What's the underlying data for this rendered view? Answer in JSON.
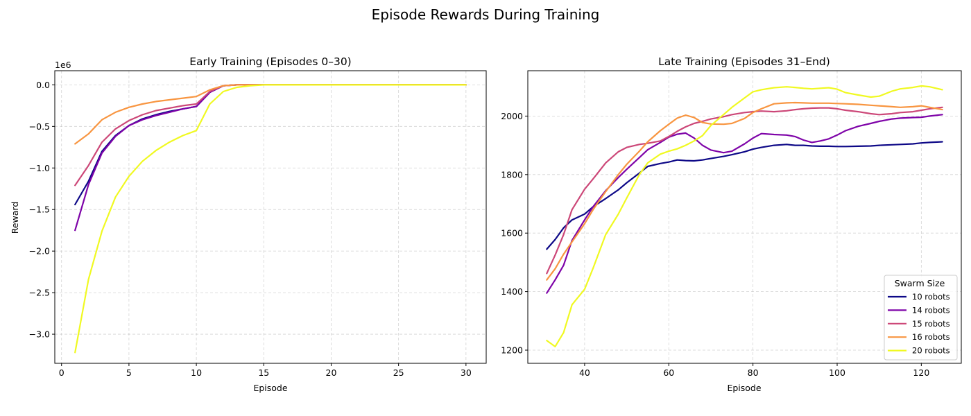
{
  "figure": {
    "title": "Episode Rewards During Training"
  },
  "chart_data": [
    {
      "type": "line",
      "title": "Early Training (Episodes 0–30)",
      "xlabel": "Episode",
      "ylabel": "Reward",
      "scale_note": "1e6",
      "xlim": [
        -0.5,
        31.5
      ],
      "ylim": [
        -3.35,
        0.17
      ],
      "xticks": [
        0,
        5,
        10,
        15,
        20,
        25,
        30
      ],
      "yticks": [
        0.0,
        -0.5,
        -1.0,
        -1.5,
        -2.0,
        -2.5,
        -3.0
      ],
      "ytick_labels": [
        "0.0",
        "−0.5",
        "−1.0",
        "−1.5",
        "−2.0",
        "−2.5",
        "−3.0"
      ],
      "y_units": "millions",
      "grid": true,
      "x": [
        1,
        2,
        3,
        4,
        5,
        6,
        7,
        8,
        9,
        10,
        11,
        12,
        13,
        14,
        15,
        20,
        25,
        30
      ],
      "series": [
        {
          "name": "10 robots",
          "color": "#0d0887",
          "values": [
            -1.44,
            -1.16,
            -0.8,
            -0.61,
            -0.49,
            -0.41,
            -0.36,
            -0.32,
            -0.29,
            -0.26,
            -0.09,
            -0.01,
            0.0,
            0.0,
            0.0,
            0.0,
            0.0,
            0.0
          ]
        },
        {
          "name": "14 robots",
          "color": "#7e03a8",
          "values": [
            -1.75,
            -1.2,
            -0.82,
            -0.62,
            -0.49,
            -0.42,
            -0.37,
            -0.33,
            -0.29,
            -0.26,
            -0.09,
            -0.01,
            0.0,
            0.0,
            0.0,
            0.0,
            0.0,
            0.0
          ]
        },
        {
          "name": "15 robots",
          "color": "#cc4778",
          "values": [
            -1.21,
            -0.97,
            -0.69,
            -0.53,
            -0.43,
            -0.36,
            -0.31,
            -0.28,
            -0.25,
            -0.23,
            -0.08,
            -0.01,
            0.0,
            0.0,
            0.0,
            0.0,
            0.0,
            0.0
          ]
        },
        {
          "name": "16 robots",
          "color": "#f89540",
          "values": [
            -0.71,
            -0.59,
            -0.42,
            -0.33,
            -0.27,
            -0.23,
            -0.2,
            -0.18,
            -0.16,
            -0.14,
            -0.06,
            -0.01,
            0.0,
            0.0,
            0.0,
            0.0,
            0.0,
            0.0
          ]
        },
        {
          "name": "20 robots",
          "color": "#f0f921",
          "values": [
            -3.22,
            -2.34,
            -1.76,
            -1.35,
            -1.1,
            -0.92,
            -0.79,
            -0.69,
            -0.61,
            -0.55,
            -0.23,
            -0.08,
            -0.03,
            -0.01,
            0.0,
            0.0,
            0.0,
            0.0
          ]
        }
      ]
    },
    {
      "type": "line",
      "title": "Late Training (Episodes 31–End)",
      "xlabel": "Episode",
      "ylabel": "",
      "xlim": [
        26.5,
        129.5
      ],
      "ylim": [
        1155,
        2155
      ],
      "xticks": [
        40,
        60,
        80,
        100,
        120
      ],
      "yticks": [
        1200,
        1400,
        1600,
        1800,
        2000
      ],
      "grid": true,
      "legend": {
        "title": "Swarm Size",
        "placement": "lower-right"
      },
      "x": [
        31,
        33,
        35,
        37,
        40,
        42,
        45,
        48,
        50,
        53,
        55,
        58,
        60,
        62,
        64,
        66,
        68,
        70,
        73,
        75,
        78,
        80,
        82,
        85,
        88,
        90,
        92,
        94,
        96,
        98,
        100,
        102,
        105,
        108,
        110,
        113,
        115,
        118,
        120,
        122,
        125
      ],
      "series": [
        {
          "name": "10 robots",
          "color": "#0d0887",
          "values": [
            1545,
            1578,
            1618,
            1645,
            1665,
            1690,
            1718,
            1748,
            1772,
            1805,
            1828,
            1838,
            1843,
            1850,
            1848,
            1847,
            1850,
            1855,
            1862,
            1868,
            1878,
            1887,
            1893,
            1900,
            1903,
            1900,
            1900,
            1898,
            1897,
            1897,
            1896,
            1896,
            1897,
            1898,
            1900,
            1902,
            1903,
            1905,
            1908,
            1910,
            1912
          ]
        },
        {
          "name": "14 robots",
          "color": "#7e03a8",
          "values": [
            1395,
            1440,
            1490,
            1575,
            1645,
            1690,
            1745,
            1790,
            1818,
            1858,
            1885,
            1910,
            1928,
            1938,
            1942,
            1925,
            1900,
            1884,
            1875,
            1880,
            1905,
            1925,
            1940,
            1937,
            1935,
            1930,
            1918,
            1910,
            1915,
            1922,
            1935,
            1950,
            1965,
            1975,
            1982,
            1990,
            1993,
            1995,
            1996,
            2000,
            2005
          ]
        },
        {
          "name": "15 robots",
          "color": "#cc4778",
          "values": [
            1462,
            1525,
            1595,
            1680,
            1750,
            1785,
            1840,
            1878,
            1893,
            1903,
            1907,
            1915,
            1930,
            1948,
            1963,
            1975,
            1982,
            1990,
            1998,
            2005,
            2012,
            2015,
            2017,
            2015,
            2018,
            2022,
            2025,
            2027,
            2028,
            2028,
            2025,
            2020,
            2015,
            2008,
            2005,
            2008,
            2012,
            2015,
            2020,
            2025,
            2030
          ]
        },
        {
          "name": "16 robots",
          "color": "#f89540",
          "values": [
            1440,
            1478,
            1528,
            1570,
            1632,
            1680,
            1742,
            1800,
            1835,
            1880,
            1912,
            1950,
            1972,
            1993,
            2003,
            1995,
            1978,
            1973,
            1972,
            1975,
            1992,
            2012,
            2025,
            2042,
            2045,
            2046,
            2045,
            2044,
            2044,
            2044,
            2043,
            2042,
            2040,
            2037,
            2035,
            2032,
            2030,
            2032,
            2035,
            2030,
            2022
          ]
        },
        {
          "name": "20 robots",
          "color": "#f0f921",
          "values": [
            1233,
            1212,
            1260,
            1355,
            1408,
            1480,
            1595,
            1665,
            1720,
            1800,
            1840,
            1870,
            1880,
            1888,
            1900,
            1915,
            1933,
            1968,
            2005,
            2030,
            2062,
            2083,
            2090,
            2097,
            2100,
            2098,
            2095,
            2093,
            2095,
            2097,
            2092,
            2080,
            2072,
            2065,
            2068,
            2085,
            2093,
            2098,
            2103,
            2100,
            2090
          ]
        }
      ]
    }
  ]
}
